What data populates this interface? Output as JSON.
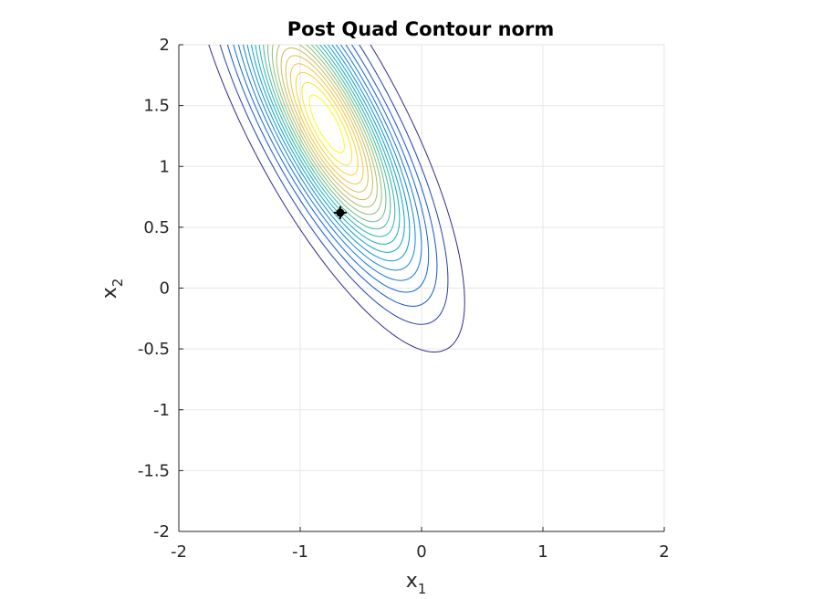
{
  "chart_data": {
    "type": "contour",
    "title": "Post Quad Contour norm",
    "xlabel": {
      "base": "x",
      "sub": "1"
    },
    "ylabel": {
      "base": "x",
      "sub": "2"
    },
    "xlim": [
      -2,
      2
    ],
    "ylim": [
      -2,
      2
    ],
    "xticks": [
      -2,
      -1,
      0,
      1,
      2
    ],
    "yticks": [
      -2,
      -1.5,
      -1,
      -0.5,
      0,
      0.5,
      1,
      1.5,
      2
    ],
    "xtick_labels": [
      "-2",
      "-1",
      "0",
      "1",
      "2"
    ],
    "ytick_labels": [
      "-2",
      "-1.5",
      "-1",
      "-0.5",
      "0",
      "0.5",
      "1",
      "1.5",
      "2"
    ],
    "grid": true,
    "box": false,
    "distribution": {
      "mean": [
        -0.78,
        1.35
      ],
      "sd_x1": 0.46,
      "sd_x2": 0.76,
      "correlation": -0.78
    },
    "num_levels": 20,
    "colormap": [
      "#352a87",
      "#0f5cdd",
      "#1481d6",
      "#06a4ca",
      "#2eb7a4",
      "#87bf77",
      "#d1bb59",
      "#fec832",
      "#f9fb0e"
    ],
    "marker": {
      "x1": -0.67,
      "x2": 0.62,
      "color": "#000000"
    }
  }
}
